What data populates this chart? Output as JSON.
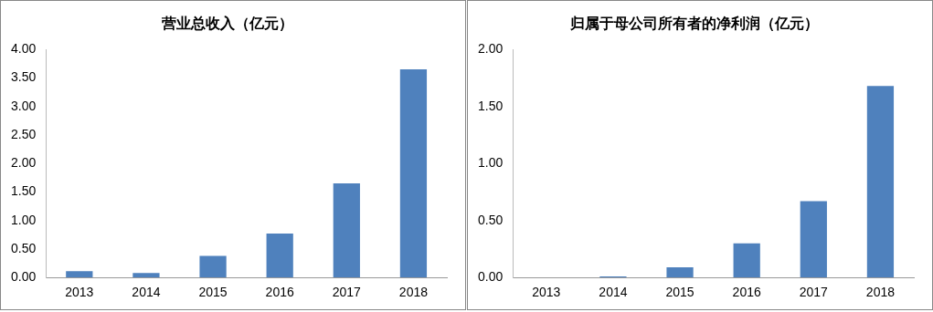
{
  "chart_data": [
    {
      "type": "bar",
      "title": "营业总收入（亿元）",
      "categories": [
        "2013",
        "2014",
        "2015",
        "2016",
        "2017",
        "2018"
      ],
      "values": [
        0.11,
        0.08,
        0.38,
        0.77,
        1.65,
        3.65
      ],
      "color": "#4f81bd",
      "ylim": [
        0,
        4
      ],
      "yticks": [
        {
          "value": 0,
          "label": "0.00"
        },
        {
          "value": 0.5,
          "label": "0.50"
        },
        {
          "value": 1,
          "label": "1.00"
        },
        {
          "value": 1.5,
          "label": "1.50"
        },
        {
          "value": 2,
          "label": "2.00"
        },
        {
          "value": 2.5,
          "label": "2.50"
        },
        {
          "value": 3,
          "label": "3.00"
        },
        {
          "value": 3.5,
          "label": "3.50"
        },
        {
          "value": 4,
          "label": "4.00"
        }
      ],
      "grid": false
    },
    {
      "type": "bar",
      "title": "归属于母公司所有者的净利润（亿元）",
      "categories": [
        "2013",
        "2014",
        "2015",
        "2016",
        "2017",
        "2018"
      ],
      "values": [
        0,
        0.01,
        0.09,
        0.3,
        0.67,
        1.68
      ],
      "color": "#4f81bd",
      "ylim": [
        0,
        2
      ],
      "yticks": [
        {
          "value": 0,
          "label": "0.00"
        },
        {
          "value": 0.5,
          "label": "0.50"
        },
        {
          "value": 1,
          "label": "1.00"
        },
        {
          "value": 1.5,
          "label": "1.50"
        },
        {
          "value": 2,
          "label": "2.00"
        }
      ],
      "grid": false
    }
  ]
}
